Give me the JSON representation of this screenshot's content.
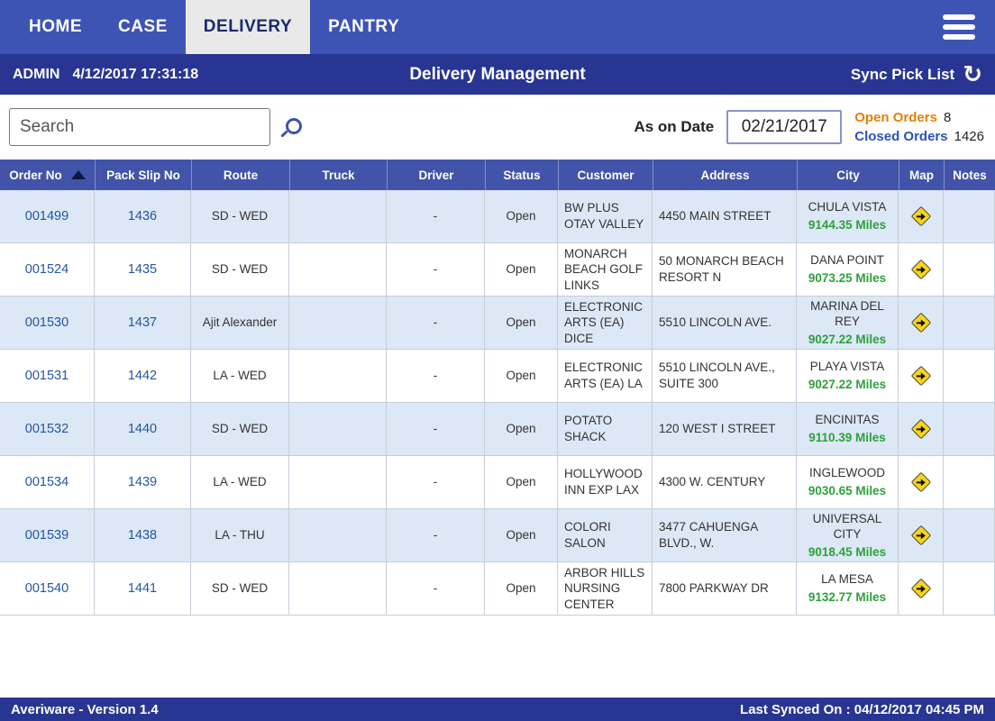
{
  "nav": {
    "tabs": [
      {
        "label": "HOME",
        "active": false
      },
      {
        "label": "CASE",
        "active": false
      },
      {
        "label": "DELIVERY",
        "active": true
      },
      {
        "label": "PANTRY",
        "active": false
      }
    ]
  },
  "header": {
    "user": "ADMIN",
    "datetime": "4/12/2017 17:31:18",
    "title": "Delivery Management",
    "sync_label": "Sync Pick List"
  },
  "toolbar": {
    "search_placeholder": "Search",
    "as_on_date_label": "As on Date",
    "as_on_date_value": "02/21/2017",
    "open_orders_label": "Open Orders",
    "open_orders_value": "8",
    "closed_orders_label": "Closed Orders",
    "closed_orders_value": "1426"
  },
  "table": {
    "columns": [
      "Order No",
      "Pack Slip No",
      "Route",
      "Truck",
      "Driver",
      "Status",
      "Customer",
      "Address",
      "City",
      "Map",
      "Notes"
    ],
    "rows": [
      {
        "order_no": "001499",
        "pack_slip_no": "1436",
        "route": "SD - WED",
        "truck": "",
        "driver": "-",
        "status": "Open",
        "customer": "BW PLUS OTAY VALLEY",
        "address": "4450 MAIN STREET",
        "city": "CHULA VISTA",
        "miles": "9144.35 Miles"
      },
      {
        "order_no": "001524",
        "pack_slip_no": "1435",
        "route": "SD - WED",
        "truck": "",
        "driver": "-",
        "status": "Open",
        "customer": "MONARCH BEACH GOLF LINKS",
        "address": "50 MONARCH BEACH RESORT N",
        "city": "DANA POINT",
        "miles": "9073.25 Miles"
      },
      {
        "order_no": "001530",
        "pack_slip_no": "1437",
        "route": "Ajit Alexander",
        "truck": "",
        "driver": "-",
        "status": "Open",
        "customer": "ELECTRONIC ARTS (EA) DICE",
        "address": "5510 LINCOLN AVE.",
        "city": "MARINA DEL REY",
        "miles": "9027.22 Miles"
      },
      {
        "order_no": "001531",
        "pack_slip_no": "1442",
        "route": "LA - WED",
        "truck": "",
        "driver": "-",
        "status": "Open",
        "customer": "ELECTRONIC ARTS (EA) LA",
        "address": "5510 LINCOLN AVE., SUITE 300",
        "city": "PLAYA VISTA",
        "miles": "9027.22 Miles"
      },
      {
        "order_no": "001532",
        "pack_slip_no": "1440",
        "route": "SD - WED",
        "truck": "",
        "driver": "-",
        "status": "Open",
        "customer": "POTATO SHACK",
        "address": "120 WEST I STREET",
        "city": "ENCINITAS",
        "miles": "9110.39 Miles"
      },
      {
        "order_no": "001534",
        "pack_slip_no": "1439",
        "route": "LA - WED",
        "truck": "",
        "driver": "-",
        "status": "Open",
        "customer": "HOLLYWOOD INN EXP LAX",
        "address": "4300 W. CENTURY",
        "city": "INGLEWOOD",
        "miles": "9030.65 Miles"
      },
      {
        "order_no": "001539",
        "pack_slip_no": "1438",
        "route": "LA - THU",
        "truck": "",
        "driver": "-",
        "status": "Open",
        "customer": "COLORI SALON",
        "address": "3477 CAHUENGA BLVD., W.",
        "city": "UNIVERSAL CITY",
        "miles": "9018.45 Miles"
      },
      {
        "order_no": "001540",
        "pack_slip_no": "1441",
        "route": "SD - WED",
        "truck": "",
        "driver": "-",
        "status": "Open",
        "customer": "ARBOR HILLS NURSING CENTER",
        "address": "7800 PARKWAY DR",
        "city": "LA MESA",
        "miles": "9132.77 Miles"
      }
    ]
  },
  "footer": {
    "left": "Averiware - Version 1.4",
    "right": "Last Synced On : 04/12/2017 04:45 PM"
  },
  "icons": {
    "menu": "hamburger-css-bars",
    "sync": "↻",
    "search": "magnifier-css-shape",
    "sort_order_no": "triangle-up-css-shape",
    "map": "yellow-diamond-arrow-css-shape"
  },
  "colors": {
    "nav_bar": "#3D54B5",
    "sub_bar": "#283593",
    "table_header": "#4254A9",
    "row_alt": "#DCE8F5",
    "active_tab_bg": "#E9E9E9",
    "link_text": "#2455A4",
    "miles_green": "#2EA03C",
    "open_orders_orange": "#E87E04",
    "closed_orders_blue": "#2A52BE",
    "map_icon_yellow": "#F6D516"
  }
}
